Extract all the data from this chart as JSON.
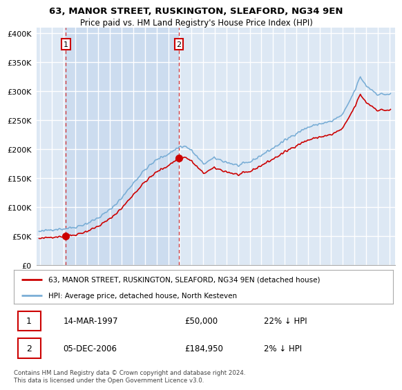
{
  "title_line1": "63, MANOR STREET, RUSKINGTON, SLEAFORD, NG34 9EN",
  "title_line2": "Price paid vs. HM Land Registry's House Price Index (HPI)",
  "legend_label1": "63, MANOR STREET, RUSKINGTON, SLEAFORD, NG34 9EN (detached house)",
  "legend_label2": "HPI: Average price, detached house, North Kesteven",
  "annotation1": {
    "num": "1",
    "date": "14-MAR-1997",
    "price": "£50,000",
    "pct": "22% ↓ HPI"
  },
  "annotation2": {
    "num": "2",
    "date": "05-DEC-2006",
    "price": "£184,950",
    "pct": "2% ↓ HPI"
  },
  "footer": "Contains HM Land Registry data © Crown copyright and database right 2024.\nThis data is licensed under the Open Government Licence v3.0.",
  "sale1_year": 1997.2,
  "sale1_price": 50000,
  "sale2_year": 2006.92,
  "sale2_price": 184950,
  "hpi_color": "#7aaed6",
  "price_color": "#cc0000",
  "highlight_color": "#dde8f4",
  "background_color": "#ffffff",
  "plot_bg_color": "#dde8f4",
  "grid_color": "#ffffff",
  "ylim": [
    0,
    410000
  ],
  "yticks": [
    0,
    50000,
    100000,
    150000,
    200000,
    250000,
    300000,
    350000,
    400000
  ],
  "xlim_start": 1994.7,
  "xlim_end": 2025.5
}
